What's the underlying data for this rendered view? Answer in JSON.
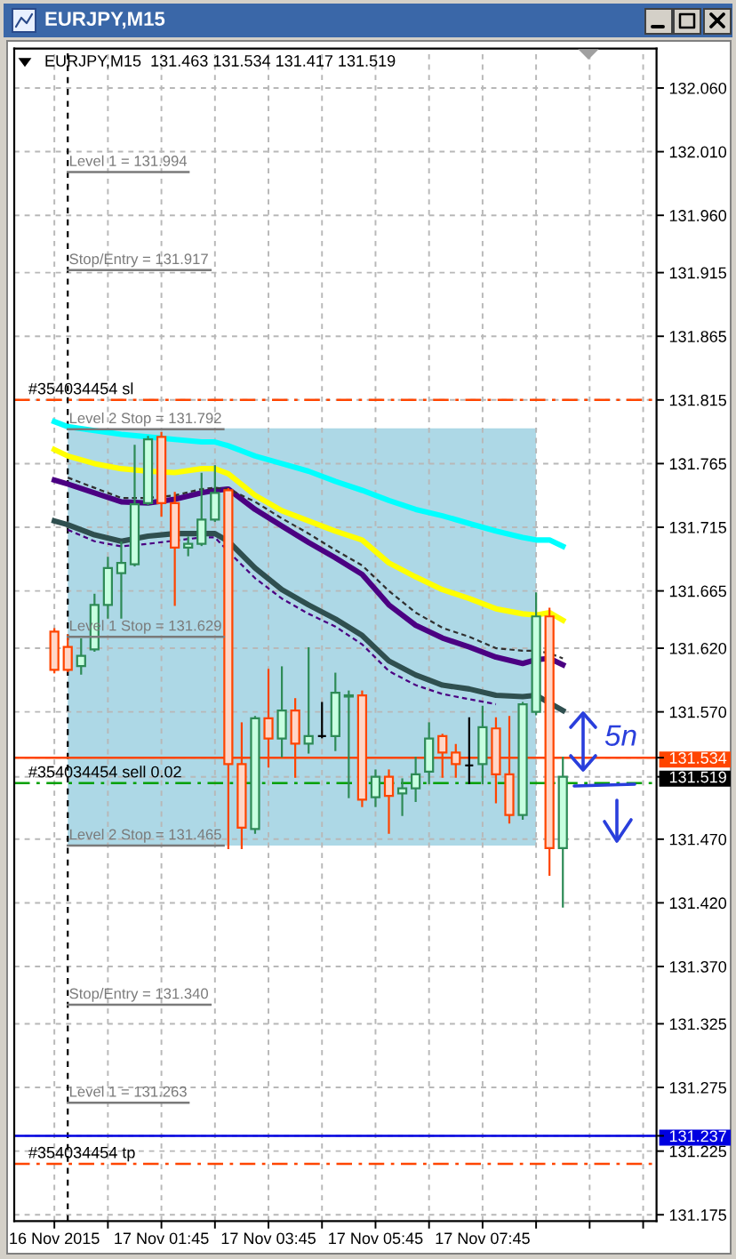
{
  "chart_data": {
    "type": "candlestick",
    "title": "EURJPY,M15",
    "subtitle": "EURJPY,M15  131.463 131.534 131.417 131.519",
    "x": [
      "2015-11-16T23:45",
      "2015-11-17T00:00",
      "2015-11-17T00:15",
      "2015-11-17T00:30",
      "2015-11-17T00:45",
      "2015-11-17T01:00",
      "2015-11-17T01:15",
      "2015-11-17T01:30",
      "2015-11-17T01:45",
      "2015-11-17T02:00",
      "2015-11-17T02:15",
      "2015-11-17T02:30",
      "2015-11-17T02:45",
      "2015-11-17T03:00",
      "2015-11-17T03:15",
      "2015-11-17T03:30",
      "2015-11-17T03:45",
      "2015-11-17T04:00",
      "2015-11-17T04:15",
      "2015-11-17T04:30",
      "2015-11-17T04:45",
      "2015-11-17T05:00",
      "2015-11-17T05:15",
      "2015-11-17T05:30",
      "2015-11-17T05:45",
      "2015-11-17T06:00",
      "2015-11-17T06:15",
      "2015-11-17T06:30",
      "2015-11-17T06:45",
      "2015-11-17T07:00",
      "2015-11-17T07:15",
      "2015-11-17T07:30",
      "2015-11-17T07:45",
      "2015-11-17T08:00",
      "2015-11-17T08:15",
      "2015-11-17T08:30",
      "2015-11-17T08:45",
      "2015-11-17T09:00",
      "2015-11-17T09:15"
    ],
    "ohlc": [
      [
        131.633,
        131.635,
        131.601,
        131.603
      ],
      [
        131.621,
        131.63,
        131.602,
        131.603
      ],
      [
        131.606,
        131.627,
        131.6,
        131.614
      ],
      [
        131.619,
        131.662,
        131.618,
        131.654
      ],
      [
        131.654,
        131.691,
        131.644,
        131.683
      ],
      [
        131.679,
        131.703,
        131.644,
        131.687
      ],
      [
        131.686,
        131.779,
        131.685,
        131.733
      ],
      [
        131.734,
        131.786,
        131.733,
        131.784
      ],
      [
        131.786,
        131.789,
        131.724,
        131.734
      ],
      [
        131.734,
        131.742,
        131.654,
        131.699
      ],
      [
        131.699,
        131.707,
        131.693,
        131.702
      ],
      [
        131.702,
        131.757,
        131.701,
        131.721
      ],
      [
        131.721,
        131.763,
        131.72,
        131.742
      ],
      [
        131.744,
        131.745,
        131.463,
        131.529
      ],
      [
        131.529,
        131.561,
        131.463,
        131.479
      ],
      [
        131.478,
        131.566,
        131.475,
        131.565
      ],
      [
        131.565,
        131.603,
        131.527,
        131.549
      ],
      [
        131.549,
        131.605,
        131.535,
        131.571
      ],
      [
        131.571,
        131.58,
        131.519,
        131.545
      ],
      [
        131.545,
        131.62,
        131.538,
        131.551
      ],
      [
        131.551,
        131.577,
        131.55,
        131.551
      ],
      [
        131.551,
        131.6,
        131.54,
        131.585
      ],
      [
        131.582,
        131.586,
        131.503,
        131.583
      ],
      [
        131.583,
        131.586,
        131.496,
        131.501
      ],
      [
        131.503,
        131.524,
        131.496,
        131.519
      ],
      [
        131.519,
        131.524,
        131.475,
        131.504
      ],
      [
        131.506,
        131.517,
        131.489,
        131.51
      ],
      [
        131.51,
        131.534,
        131.5,
        131.521
      ],
      [
        131.523,
        131.561,
        131.514,
        131.549
      ],
      [
        131.551,
        131.552,
        131.519,
        131.538
      ],
      [
        131.538,
        131.544,
        131.519,
        131.529
      ],
      [
        131.528,
        131.565,
        131.514,
        131.528
      ],
      [
        131.529,
        131.574,
        131.514,
        131.558
      ],
      [
        131.557,
        131.565,
        131.499,
        131.521
      ],
      [
        131.521,
        131.566,
        131.483,
        131.489
      ],
      [
        131.489,
        131.577,
        131.486,
        131.576
      ],
      [
        131.57,
        131.663,
        131.568,
        131.645
      ],
      [
        131.645,
        131.651,
        131.442,
        131.463
      ],
      [
        131.463,
        131.534,
        131.417,
        131.519
      ]
    ],
    "colors": [
      "#ff4500",
      "#ff4500",
      "#2e8b57",
      "#2e8b57",
      "#2e8b57",
      "#2e8b57",
      "#2e8b57",
      "#2e8b57",
      "#ff4500",
      "#ff4500",
      "#2e8b57",
      "#2e8b57",
      "#2e8b57",
      "#ff4500",
      "#ff4500",
      "#2e8b57",
      "#ff4500",
      "#2e8b57",
      "#ff4500",
      "#2e8b57",
      "#000000",
      "#2e8b57",
      "#2e8b57",
      "#ff4500",
      "#2e8b57",
      "#ff4500",
      "#2e8b57",
      "#2e8b57",
      "#2e8b57",
      "#ff4500",
      "#ff4500",
      "#000000",
      "#2e8b57",
      "#ff4500",
      "#ff4500",
      "#2e8b57",
      "#2e8b57",
      "#ff4500",
      "#2e8b57"
    ],
    "series": [
      {
        "type": "line",
        "color": "#add8e6",
        "line_style": "solid",
        "x": [
          "2015-11-17T00:00",
          "2015-11-17T08:45"
        ],
        "values": [
          131.792,
          131.792
        ],
        "lower": [
          131.465,
          131.465
        ],
        "upper": [
          131.792,
          131.792
        ]
      },
      {
        "type": "line",
        "color": "#00ffff",
        "line_style": "solid",
        "x": [
          "2015-11-16T23:45",
          "2015-11-17T00:00",
          "2015-11-17T00:30",
          "2015-11-17T01:00",
          "2015-11-17T01:30",
          "2015-11-17T02:00",
          "2015-11-17T02:30",
          "2015-11-17T02:45",
          "2015-11-17T03:00",
          "2015-11-17T03:30",
          "2015-11-17T04:00",
          "2015-11-17T04:30",
          "2015-11-17T05:00",
          "2015-11-17T05:30",
          "2015-11-17T06:00",
          "2015-11-17T06:30",
          "2015-11-17T07:00",
          "2015-11-17T07:30",
          "2015-11-17T08:00",
          "2015-11-17T08:30",
          "2015-11-17T08:45",
          "2015-11-17T09:00",
          "2015-11-17T09:15"
        ],
        "values": [
          131.798,
          131.794,
          131.791,
          131.788,
          131.786,
          131.784,
          131.782,
          131.782,
          131.779,
          131.771,
          131.765,
          131.759,
          131.751,
          131.744,
          131.736,
          131.729,
          131.724,
          131.718,
          131.712,
          131.707,
          131.705,
          131.705,
          131.7
        ]
      },
      {
        "type": "line",
        "color": "#ffff00",
        "line_style": "solid",
        "x": [
          "2015-11-16T23:45",
          "2015-11-17T00:00",
          "2015-11-17T00:30",
          "2015-11-17T01:00",
          "2015-11-17T01:30",
          "2015-11-17T02:00",
          "2015-11-17T02:30",
          "2015-11-17T02:45",
          "2015-11-17T03:00",
          "2015-11-17T03:30",
          "2015-11-17T04:00",
          "2015-11-17T04:30",
          "2015-11-17T05:00",
          "2015-11-17T05:30",
          "2015-11-17T06:00",
          "2015-11-17T06:30",
          "2015-11-17T07:00",
          "2015-11-17T07:30",
          "2015-11-17T08:00",
          "2015-11-17T08:30",
          "2015-11-17T08:45",
          "2015-11-17T09:00",
          "2015-11-17T09:15"
        ],
        "values": [
          131.776,
          131.771,
          131.765,
          131.761,
          131.759,
          131.758,
          131.761,
          131.761,
          131.757,
          131.74,
          131.728,
          131.72,
          131.712,
          131.705,
          131.687,
          131.676,
          131.666,
          131.659,
          131.651,
          131.647,
          131.646,
          131.648,
          131.642
        ]
      },
      {
        "type": "line",
        "color": "#4b0082",
        "line_style": "solid",
        "x": [
          "2015-11-16T23:45",
          "2015-11-17T00:00",
          "2015-11-17T00:30",
          "2015-11-17T01:00",
          "2015-11-17T01:30",
          "2015-11-17T02:00",
          "2015-11-17T02:30",
          "2015-11-17T02:45",
          "2015-11-17T03:00",
          "2015-11-17T03:30",
          "2015-11-17T04:00",
          "2015-11-17T04:30",
          "2015-11-17T05:00",
          "2015-11-17T05:30",
          "2015-11-17T06:00",
          "2015-11-17T06:30",
          "2015-11-17T07:00",
          "2015-11-17T07:30",
          "2015-11-17T08:00",
          "2015-11-17T08:30",
          "2015-11-17T08:45",
          "2015-11-17T09:00",
          "2015-11-17T09:15"
        ],
        "values": [
          131.752,
          131.749,
          131.742,
          131.735,
          131.734,
          131.737,
          131.742,
          131.744,
          131.745,
          131.729,
          131.716,
          131.703,
          131.691,
          131.678,
          131.654,
          131.638,
          131.628,
          131.621,
          131.613,
          131.608,
          131.611,
          131.612,
          131.607
        ]
      },
      {
        "type": "line",
        "color": "#2f4f4f",
        "line_style": "solid",
        "x": [
          "2015-11-16T23:45",
          "2015-11-17T00:00",
          "2015-11-17T00:30",
          "2015-11-17T01:00",
          "2015-11-17T01:30",
          "2015-11-17T02:00",
          "2015-11-17T02:30",
          "2015-11-17T02:45",
          "2015-11-17T03:00",
          "2015-11-17T03:30",
          "2015-11-17T04:00",
          "2015-11-17T04:30",
          "2015-11-17T05:00",
          "2015-11-17T05:30",
          "2015-11-17T06:00",
          "2015-11-17T06:30",
          "2015-11-17T07:00",
          "2015-11-17T07:30",
          "2015-11-17T08:00",
          "2015-11-17T08:30",
          "2015-11-17T08:45",
          "2015-11-17T09:00",
          "2015-11-17T09:15"
        ],
        "values": [
          131.72,
          131.717,
          131.709,
          131.704,
          131.708,
          131.71,
          131.71,
          131.71,
          131.704,
          131.683,
          131.666,
          131.654,
          131.643,
          131.63,
          131.61,
          131.599,
          131.591,
          131.588,
          131.583,
          131.582,
          131.583,
          131.577,
          131.571
        ]
      },
      {
        "type": "line",
        "color": "#303030",
        "line_style": "dashed",
        "x": [
          "2015-11-17T00:00",
          "2015-11-17T00:30",
          "2015-11-17T01:00",
          "2015-11-17T01:30",
          "2015-11-17T02:00",
          "2015-11-17T02:30",
          "2015-11-17T02:45",
          "2015-11-17T03:00",
          "2015-11-17T03:30",
          "2015-11-17T04:00",
          "2015-11-17T04:30",
          "2015-11-17T05:00",
          "2015-11-17T05:30",
          "2015-11-17T06:00",
          "2015-11-17T06:30",
          "2015-11-17T07:00",
          "2015-11-17T07:30",
          "2015-11-17T08:00",
          "2015-11-17T08:30",
          "2015-11-17T08:45",
          "2015-11-17T09:00",
          "2015-11-17T09:15"
        ],
        "values": [
          131.754,
          131.746,
          131.738,
          131.738,
          131.74,
          131.745,
          131.746,
          131.745,
          131.735,
          131.722,
          131.71,
          131.697,
          131.685,
          131.665,
          131.648,
          131.636,
          131.629,
          131.62,
          131.618,
          131.618,
          131.616,
          131.612
        ]
      },
      {
        "type": "line",
        "color": "#4b0082",
        "line_style": "dashed",
        "x": [
          "2015-11-17T00:00",
          "2015-11-17T00:30",
          "2015-11-17T01:00",
          "2015-11-17T01:30",
          "2015-11-17T02:30",
          "2015-11-17T02:45",
          "2015-11-17T03:00",
          "2015-11-17T03:30",
          "2015-11-17T04:00",
          "2015-11-17T04:30",
          "2015-11-17T05:00",
          "2015-11-17T05:30",
          "2015-11-17T06:00",
          "2015-11-17T06:30",
          "2015-11-17T07:00",
          "2015-11-17T07:30",
          "2015-11-17T08:00"
        ],
        "values": [
          131.713,
          131.704,
          131.7,
          131.702,
          131.707,
          131.707,
          131.696,
          131.675,
          131.659,
          131.647,
          131.637,
          131.623,
          131.602,
          131.591,
          131.584,
          131.58,
          131.576
        ]
      }
    ],
    "xlim": [
      "2015-11-16T23:00",
      "2015-11-17T11:00"
    ],
    "xticks": [
      {
        "value": "2015-11-16T23:45",
        "label": "16 Nov 2015"
      },
      {
        "value": "2015-11-17T00:45",
        "label": null
      },
      {
        "value": "2015-11-17T01:45",
        "label": "17 Nov 01:45"
      },
      {
        "value": "2015-11-17T02:45",
        "label": null
      },
      {
        "value": "2015-11-17T03:45",
        "label": "17 Nov 03:45"
      },
      {
        "value": "2015-11-17T04:45",
        "label": null
      },
      {
        "value": "2015-11-17T05:45",
        "label": "17 Nov 05:45"
      },
      {
        "value": "2015-11-17T06:45",
        "label": null
      },
      {
        "value": "2015-11-17T07:45",
        "label": "17 Nov 07:45"
      },
      {
        "value": "2015-11-17T08:45",
        "label": null
      },
      {
        "value": "2015-11-17T09:45",
        "label": null
      },
      {
        "value": "2015-11-17T10:45",
        "label": null
      }
    ],
    "ylim": [
      131.17,
      132.091
    ],
    "yticks": [
      {
        "value": 132.06,
        "label": "132.060"
      },
      {
        "value": 132.01,
        "label": "132.010"
      },
      {
        "value": 131.96,
        "label": "131.960"
      },
      131.915,
      131.865,
      131.815,
      131.765,
      131.715,
      131.665,
      {
        "value": 131.62,
        "label": "131.620"
      },
      {
        "value": 131.57,
        "label": "131.570"
      },
      131.534,
      131.519,
      {
        "value": 131.47,
        "label": "131.470"
      },
      {
        "value": 131.42,
        "label": "131.420"
      },
      {
        "value": 131.37,
        "label": "131.370"
      },
      131.325,
      131.275,
      131.237,
      131.225,
      131.175
    ],
    "ref_lines": [
      {
        "axis": "x",
        "value": "2015-11-17T00:00",
        "color": "#000000",
        "line_style": "dashed"
      },
      {
        "axis": "y",
        "value": 131.815,
        "label": "#354034454 sl",
        "color": "#ff4500",
        "line_style": "dashdot"
      },
      {
        "axis": "y",
        "value": 131.514,
        "label": "#354034454 sell 0.02",
        "color": "#00a000",
        "line_style": "dashdot"
      },
      {
        "axis": "y",
        "value": 131.215,
        "label": "#354034454 tp",
        "color": "#ff4500",
        "line_style": "dashdot"
      },
      {
        "axis": "y",
        "value": 131.534,
        "color": "#ff4500",
        "line_style": "solid"
      },
      {
        "axis": "y",
        "value": 131.237,
        "color": "#0000e0",
        "line_style": "solid"
      }
    ],
    "annotations": [
      {
        "text": "Level 1 = 131.994",
        "x": "2015-11-17T00:00",
        "y": 131.994
      },
      {
        "text": "Stop/Entry = 131.917",
        "x": "2015-11-17T00:00",
        "y": 131.917
      },
      {
        "text": "Level 2 Stop = 131.792",
        "x": "2015-11-17T00:00",
        "y": 131.792
      },
      {
        "text": "Level 1 Stop = 131.629",
        "x": "2015-11-17T00:00",
        "y": 131.629
      },
      {
        "text": "Level 2 Stop = 131.465",
        "x": "2015-11-17T00:00",
        "y": 131.465
      },
      {
        "text": "Stop/Entry = 131.340",
        "x": "2015-11-17T00:00",
        "y": 131.34
      },
      {
        "text": "Level 1 = 131.263",
        "x": "2015-11-17T00:00",
        "y": 131.263
      },
      "5n"
    ],
    "grid": true
  }
}
